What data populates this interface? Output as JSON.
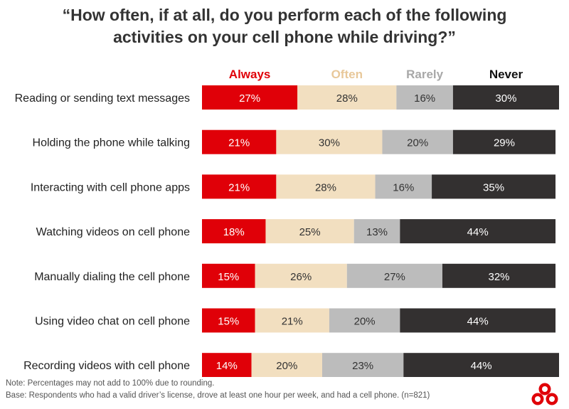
{
  "chart_data": {
    "type": "bar",
    "orientation": "horizontal",
    "stacked": true,
    "title": [
      "“How often, if at all, do you perform each of the following",
      "activities on your cell phone while driving?”"
    ],
    "categories": [
      "Reading or sending text messages",
      "Holding the phone while talking",
      "Interacting with cell phone apps",
      "Watching videos on cell phone",
      "Manually dialing the cell phone",
      "Using video chat on cell phone",
      "Recording videos with cell phone"
    ],
    "series": [
      {
        "name": "Always",
        "color": "#e00008",
        "label_color": "#e00008",
        "text_color": "#ffffff",
        "values": [
          27,
          21,
          21,
          18,
          15,
          15,
          14
        ],
        "labels": [
          "27%",
          "21%",
          "21%",
          "18%",
          "15%",
          "15%",
          "14%"
        ]
      },
      {
        "name": "Often",
        "color": "#f2dfc0",
        "label_color": "#e8c89a",
        "text_color": "#333333",
        "values": [
          28,
          30,
          28,
          25,
          26,
          21,
          20
        ],
        "labels": [
          "28%",
          "30%",
          "28%",
          "25%",
          "26%",
          "21%",
          "20%"
        ]
      },
      {
        "name": "Rarely",
        "color": "#bcbcbc",
        "label_color": "#a8a8a8",
        "text_color": "#333333",
        "values": [
          16,
          20,
          16,
          13,
          27,
          20,
          23
        ],
        "labels": [
          "16%",
          "20%",
          "16%",
          "13%",
          "27%",
          "20%",
          "23%"
        ]
      },
      {
        "name": "Never",
        "color": "#333030",
        "label_color": "#111111",
        "text_color": "#ffffff",
        "values": [
          30,
          29,
          35,
          44,
          32,
          44,
          44
        ],
        "labels": [
          "30%",
          "29%",
          "35%",
          "44%",
          "32%",
          "44%",
          "44%"
        ]
      }
    ],
    "xlim": [
      0,
      101
    ],
    "grid": false,
    "legend_position": "top"
  },
  "notes": {
    "note": "Note:  Percentages may not add to 100% due to rounding.",
    "base": "Base:  Respondents who had a valid driver’s license, drove at least one hour per week, and had a cell phone.  (n=821)"
  },
  "colors": {
    "brand_red": "#e00008"
  },
  "logo": {
    "icon": "brand-logo-icon"
  }
}
